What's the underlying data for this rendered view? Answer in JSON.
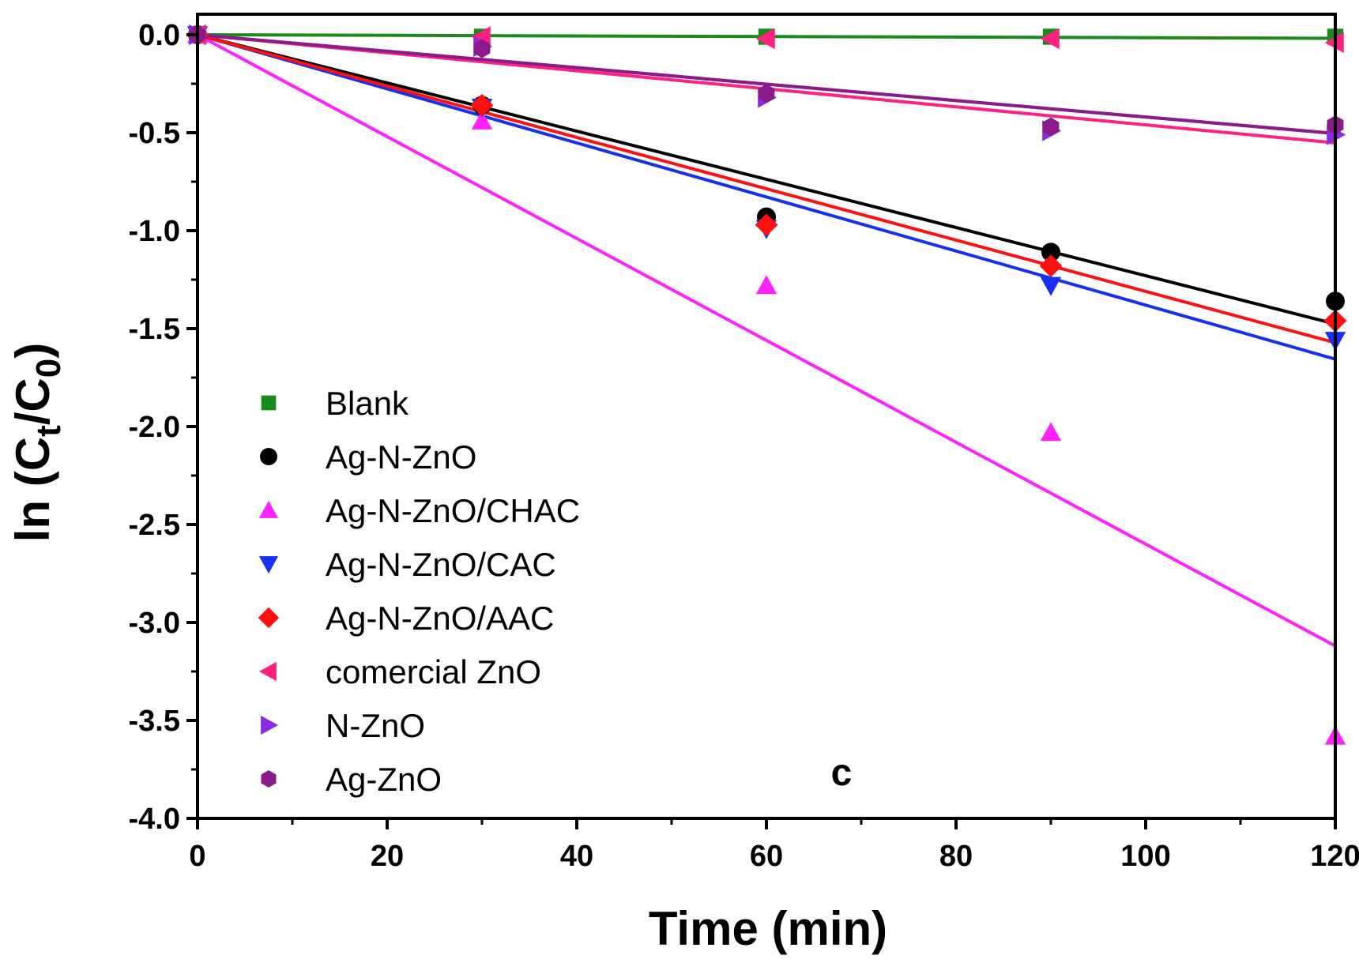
{
  "chart_data": {
    "type": "scatter",
    "title": "",
    "panel_label": "c",
    "xlabel": "Time (min)",
    "ylabel": {
      "main": "ln (C",
      "sub1": "t",
      "mid": "/C",
      "sub2": "0",
      "end": ")"
    },
    "xlim": [
      0,
      120
    ],
    "ylim": [
      -4.0,
      0.0
    ],
    "xticks": [
      0,
      20,
      40,
      60,
      80,
      100,
      120
    ],
    "xtick_labels": [
      "0",
      "20",
      "40",
      "60",
      "80",
      "100",
      "120"
    ],
    "yticks": [
      0.0,
      -0.5,
      -1.0,
      -1.5,
      -2.0,
      -2.5,
      -3.0,
      -3.5,
      -4.0
    ],
    "ytick_labels": [
      "0.0",
      "-0.5",
      "-1.0",
      "-1.5",
      "-2.0",
      "-2.5",
      "-3.0",
      "-3.5",
      "-4.0"
    ],
    "legend_position": "lower-left",
    "x": [
      0,
      30,
      60,
      90,
      120
    ],
    "series": [
      {
        "name": "Blank",
        "marker": "square",
        "color": "#1a8a1a",
        "values": [
          0,
          -0.01,
          -0.01,
          -0.01,
          -0.01
        ],
        "fit_slope": -0.00015
      },
      {
        "name": "Ag-N-ZnO",
        "marker": "circle",
        "color": "#000000",
        "values": [
          0,
          -0.36,
          -0.93,
          -1.11,
          -1.36
        ],
        "fit_slope": -0.0123
      },
      {
        "name": "Ag-N-ZnO/CHAC",
        "marker": "triangle-up",
        "color": "#ff22ff",
        "values": [
          0,
          -0.44,
          -1.28,
          -2.03,
          -3.58
        ],
        "fit_slope": -0.026
      },
      {
        "name": "Ag-N-ZnO/CAC",
        "marker": "triangle-down",
        "color": "#1530ee",
        "values": [
          0,
          -0.37,
          -0.99,
          -1.28,
          -1.56
        ],
        "fit_slope": -0.0138
      },
      {
        "name": "Ag-N-ZnO/AAC",
        "marker": "diamond",
        "color": "#ff1010",
        "values": [
          0,
          -0.36,
          -0.97,
          -1.18,
          -1.46
        ],
        "fit_slope": -0.0131
      },
      {
        "name": "comercial ZnO",
        "marker": "triangle-left",
        "color": "#ff2080",
        "values": [
          0,
          -0.01,
          -0.02,
          -0.02,
          -0.04
        ],
        "fit_slope": -0.0046
      },
      {
        "name": "N-ZnO",
        "marker": "triangle-right",
        "color": "#8a2be2",
        "values": [
          0,
          -0.06,
          -0.32,
          -0.49,
          -0.51
        ],
        "fit_slope": -0.0042
      },
      {
        "name": "Ag-ZnO",
        "marker": "hexagon",
        "color": "#8b1a8b",
        "values": [
          0,
          -0.07,
          -0.3,
          -0.47,
          -0.46
        ],
        "fit_slope": -0.0042
      }
    ]
  },
  "colors": {
    "axis": "#000000",
    "background": "#ffffff"
  }
}
